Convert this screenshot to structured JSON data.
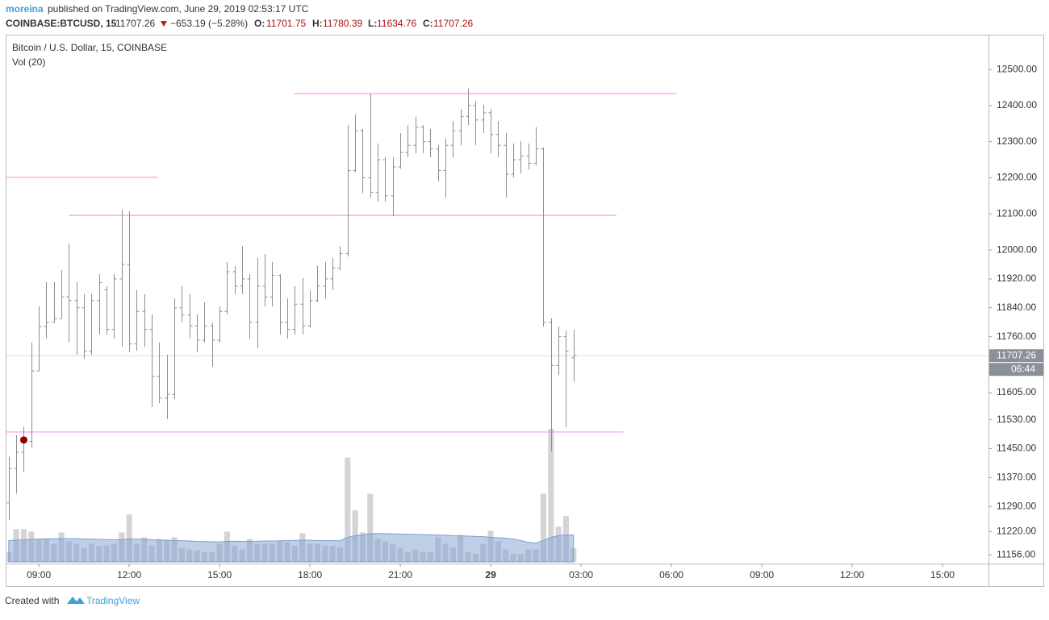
{
  "header": {
    "author": "moreina",
    "published": "published on TradingView.com, June 29, 2019 02:53:17 UTC",
    "symbol": "COINBASE:BTCUSD, 15",
    "change": "−653.19 (−5.28%)",
    "o": "O:",
    "h": "H:",
    "l": "L:",
    "c": "C:"
  },
  "footer": {
    "created": "Created with",
    "brand": "TradingView"
  },
  "chart_data": {
    "type": "ohlc",
    "title": "Bitcoin / U.S. Dollar, 15, COINBASE",
    "volume_label": "Vol (20)",
    "color": "#8e8e8e",
    "volume_color": "#d4d4d8",
    "volume_ma_color": "#7f9fd0",
    "level_color": "#ff80e6",
    "countdown": "06:44",
    "open": [
      11300,
      11395,
      11440,
      11470,
      11665,
      11788,
      11800,
      11810,
      11870,
      11860,
      11840,
      11720,
      11860,
      11890,
      11780,
      11920,
      11960,
      11740,
      11830,
      11780,
      11650,
      11590,
      11600,
      11840,
      11820,
      11790,
      11750,
      11790,
      11750,
      11830,
      11940,
      11900,
      11920,
      11800,
      11900,
      11870,
      11930,
      11800,
      11780,
      11850,
      11790,
      11860,
      11900,
      11920,
      11950,
      11990,
      12220,
      12330,
      12200,
      12160,
      12250,
      12150,
      12230,
      12270,
      12290,
      12340,
      12300,
      12280,
      12220,
      12290,
      12330,
      12370,
      12400,
      12360,
      12380,
      12320,
      12290,
      12210,
      12250,
      12260,
      12240,
      12280,
      11800,
      11680,
      11760,
      11701.75
    ],
    "high": [
      11427,
      11487,
      11510,
      11744,
      11844,
      11911,
      11911,
      11944,
      12018,
      11911,
      11878,
      11878,
      11933,
      11900,
      11933,
      12112,
      12107,
      11889,
      11878,
      11822,
      11744,
      11710,
      11866,
      11900,
      11878,
      11822,
      11855,
      11799,
      11844,
      11967,
      11956,
      12011,
      11933,
      11978,
      11989,
      11967,
      11933,
      11866,
      11900,
      11922,
      11889,
      11956,
      11967,
      11978,
      12011,
      12346,
      12375,
      12335,
      12433,
      12295,
      12257,
      12257,
      12324,
      12346,
      12369,
      12346,
      12335,
      12290,
      12308,
      12357,
      12391,
      12447,
      12413,
      12402,
      12391,
      12357,
      12324,
      12295,
      12302,
      12295,
      12340,
      12284,
      11811,
      11788,
      11777,
      11780.39
    ],
    "low": [
      11252,
      11326,
      11386,
      11453,
      11665,
      11755,
      11799,
      11811,
      11744,
      11710,
      11699,
      11710,
      11766,
      11766,
      11755,
      11732,
      11717,
      11721,
      11732,
      11565,
      11576,
      11532,
      11587,
      11799,
      11755,
      11717,
      11744,
      11677,
      11744,
      11822,
      11878,
      11878,
      11755,
      11728,
      11844,
      11844,
      11766,
      11755,
      11766,
      11766,
      11785,
      11855,
      11866,
      11889,
      11944,
      11982,
      12215,
      12157,
      12145,
      12134,
      12134,
      12094,
      12225,
      12257,
      12268,
      12268,
      12257,
      12190,
      12145,
      12257,
      12290,
      12346,
      12290,
      12324,
      12268,
      12257,
      12145,
      12201,
      12212,
      12223,
      12235,
      11788,
      11442,
      11654,
      11509,
      11634.76
    ],
    "close": [
      11395,
      11440,
      11470,
      11665,
      11788,
      11800,
      11810,
      11870,
      11860,
      11840,
      11720,
      11860,
      11910,
      11780,
      11920,
      11960,
      11740,
      11830,
      11780,
      11650,
      11590,
      11600,
      11840,
      11820,
      11790,
      11750,
      11790,
      11750,
      11830,
      11940,
      11900,
      11920,
      11800,
      11900,
      11870,
      11930,
      11800,
      11780,
      11850,
      11790,
      11860,
      11900,
      11920,
      11950,
      11990,
      12220,
      12330,
      12200,
      12160,
      12250,
      12150,
      12230,
      12270,
      12290,
      12340,
      12300,
      12280,
      12220,
      12290,
      12330,
      12370,
      12400,
      12360,
      12380,
      12320,
      12290,
      12210,
      12250,
      12260,
      12240,
      12280,
      11800,
      11680,
      11760,
      11720,
      11707.26
    ],
    "volume": [
      120,
      400,
      400,
      370,
      280,
      280,
      220,
      360,
      250,
      220,
      170,
      220,
      200,
      200,
      220,
      360,
      580,
      220,
      300,
      200,
      280,
      270,
      300,
      170,
      150,
      140,
      120,
      120,
      220,
      370,
      200,
      150,
      280,
      220,
      220,
      220,
      250,
      240,
      200,
      350,
      220,
      220,
      200,
      200,
      180,
      1270,
      630,
      360,
      830,
      280,
      250,
      220,
      170,
      120,
      150,
      120,
      120,
      300,
      220,
      180,
      330,
      120,
      100,
      220,
      380,
      250,
      150,
      100,
      100,
      150,
      150,
      830,
      1620,
      430,
      560,
      170
    ],
    "volume_ma": [
      260,
      265,
      270,
      275,
      280,
      282,
      282,
      285,
      285,
      283,
      280,
      278,
      275,
      272,
      270,
      272,
      280,
      278,
      275,
      270,
      268,
      265,
      262,
      258,
      255,
      250,
      248,
      245,
      245,
      250,
      252,
      250,
      250,
      252,
      255,
      255,
      258,
      262,
      262,
      265,
      265,
      262,
      260,
      260,
      258,
      300,
      320,
      330,
      345,
      345,
      345,
      342,
      340,
      338,
      335,
      332,
      330,
      328,
      325,
      320,
      318,
      315,
      310,
      308,
      300,
      295,
      290,
      280,
      260,
      240,
      230,
      260,
      300,
      320,
      330,
      330
    ],
    "levels": [
      {
        "value": 12201,
        "start": -0.3,
        "end": 19.8
      },
      {
        "value": 12096,
        "start": 8,
        "end": 80.7
      },
      {
        "value": 12433,
        "start": 37.9,
        "end": 88.7
      },
      {
        "value": 11496,
        "start": -0.3,
        "end": 81.7
      }
    ],
    "marker": {
      "x": 2,
      "value": 11474,
      "color": "#8b0000"
    },
    "xlim": [
      -0.3,
      130.1
    ],
    "xticks": [
      {
        "value": 4,
        "label": "09:00"
      },
      {
        "value": 16,
        "label": "12:00"
      },
      {
        "value": 28,
        "label": "15:00"
      },
      {
        "value": 40,
        "label": "18:00"
      },
      {
        "value": 52,
        "label": "21:00"
      },
      {
        "value": 64,
        "label": "29"
      },
      {
        "value": 76,
        "label": "03:00"
      },
      {
        "value": 88,
        "label": "06:00"
      },
      {
        "value": 100,
        "label": "09:00"
      },
      {
        "value": 112,
        "label": "12:00"
      },
      {
        "value": 124,
        "label": "15:00"
      }
    ],
    "ylim": [
      11134,
      12594
    ],
    "yticks": [
      {
        "value": 12500,
        "label": "12500.00"
      },
      {
        "value": 12400,
        "label": "12400.00"
      },
      {
        "value": 12300,
        "label": "12300.00"
      },
      {
        "value": 12200,
        "label": "12200.00"
      },
      {
        "value": 12100,
        "label": "12100.00"
      },
      {
        "value": 12000,
        "label": "12000.00"
      },
      {
        "value": 11920,
        "label": "11920.00"
      },
      {
        "value": 11840,
        "label": "11840.00"
      },
      {
        "value": 11760,
        "label": "11760.00"
      },
      {
        "value": 11605,
        "label": "11605.00"
      },
      {
        "value": 11530,
        "label": "11530.00"
      },
      {
        "value": 11450,
        "label": "11450.00"
      },
      {
        "value": 11370,
        "label": "11370.00"
      },
      {
        "value": 11290,
        "label": "11290.00"
      },
      {
        "value": 11220,
        "label": "11220.00"
      },
      {
        "value": 11156,
        "label": "11156.00"
      }
    ]
  }
}
